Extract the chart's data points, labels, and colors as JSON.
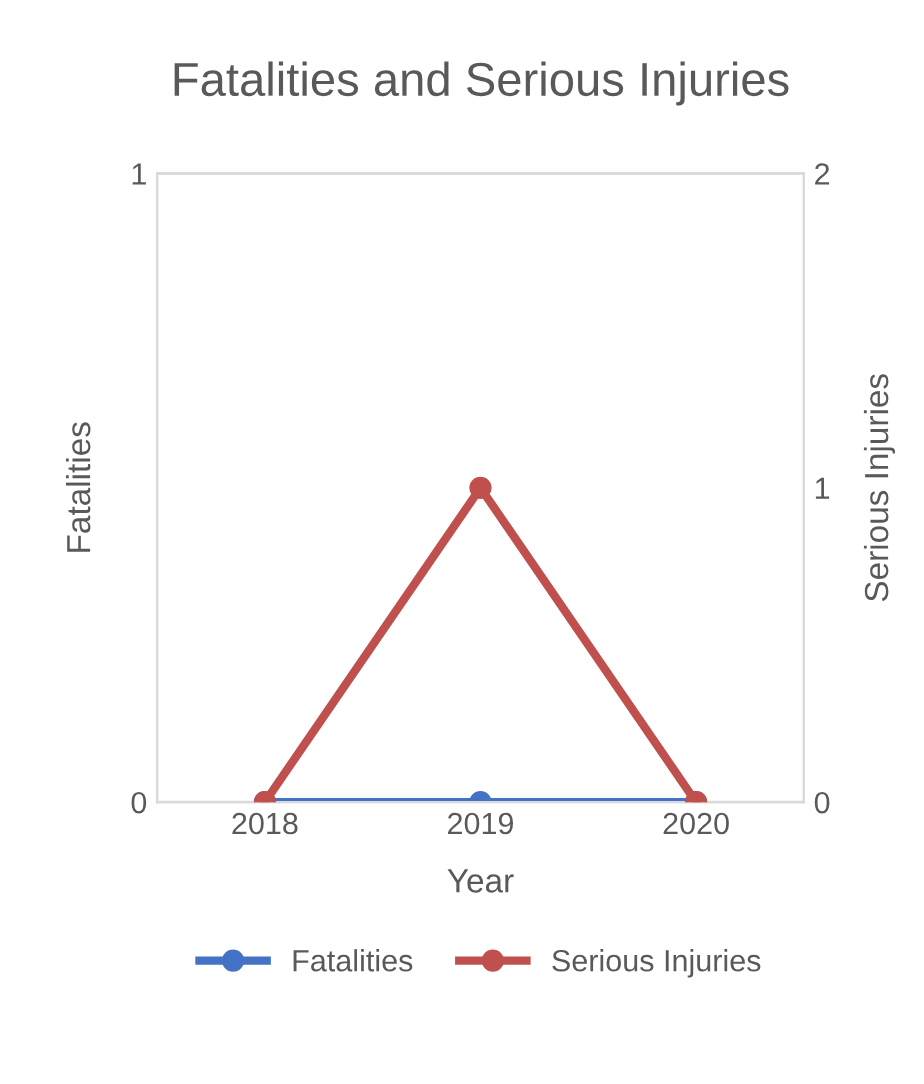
{
  "chart_data": {
    "type": "line",
    "title": "Fatalities and Serious Injuries",
    "categories": [
      "2018",
      "2019",
      "2020"
    ],
    "xlabel": "Year",
    "ylabel": "Fatalities",
    "y2label": "Serious Injuries",
    "series": [
      {
        "name": "Fatalities",
        "color": "#4472c4",
        "values": [
          0,
          0,
          0
        ]
      },
      {
        "name": "Serious Injuries",
        "color": "#c0504d",
        "values": [
          0,
          1,
          0
        ],
        "axis": "y2"
      }
    ],
    "ylim": [
      0,
      1
    ],
    "yticks": [
      0,
      1
    ],
    "y2lim": [
      0,
      2
    ],
    "y2ticks": [
      0,
      1,
      2
    ],
    "grid": "y",
    "legend": "bottom",
    "marker": "circle",
    "line_style": "solid"
  }
}
